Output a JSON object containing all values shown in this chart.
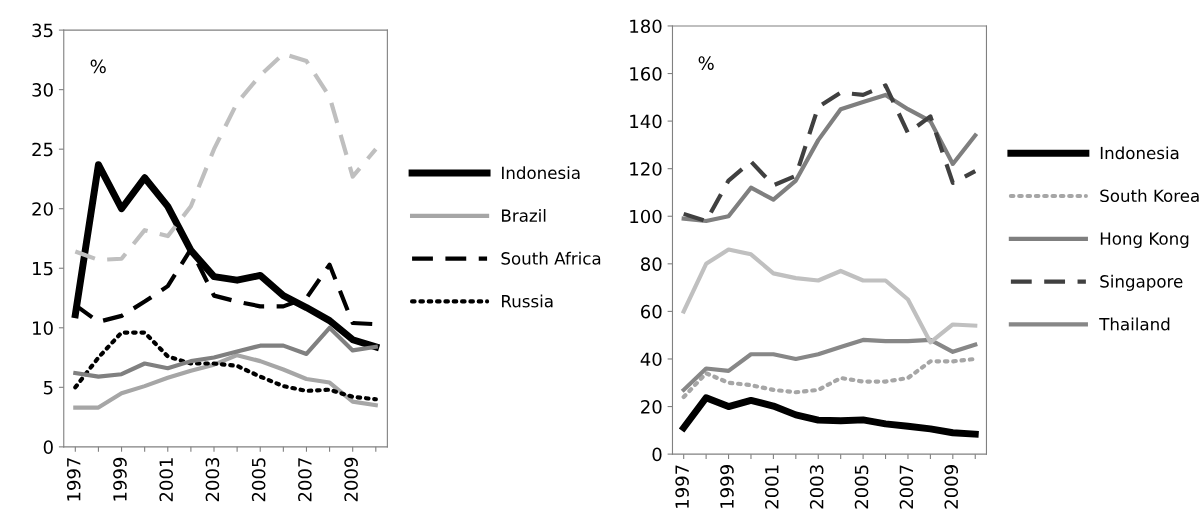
{
  "chart_data": [
    {
      "type": "line",
      "categories": [
        "1997",
        null,
        "1999",
        null,
        "2001",
        null,
        "2003",
        null,
        "2005",
        null,
        "2007",
        null,
        "2009",
        null
      ],
      "ylim": [
        0,
        35
      ],
      "yticks": [
        0,
        5,
        10,
        15,
        20,
        25,
        30,
        35
      ],
      "grid": false,
      "legend": "right",
      "annotations": [
        "%"
      ],
      "series": [
        {
          "name": "Indonesia",
          "color": "#000000",
          "line_style": "solid",
          "values": [
            11.1,
            23.7,
            20,
            22.6,
            20.2,
            16.5,
            14.3,
            14,
            14.4,
            12.7,
            11.7,
            10.6,
            9,
            8.4
          ]
        },
        {
          "name": "Brazil",
          "color": "#a6a6a6",
          "line_style": "solid",
          "values": [
            3.3,
            3.3,
            4.5,
            5.1,
            5.8,
            6.4,
            6.9,
            7.7,
            7.2,
            6.5,
            5.7,
            5.4,
            3.8,
            3.5
          ]
        },
        {
          "name": "South Africa",
          "color": "#000000",
          "line_style": "dashed",
          "values": [
            11.9,
            10.5,
            11,
            12.2,
            13.5,
            16.6,
            12.7,
            12.2,
            11.8,
            11.8,
            12.5,
            15.3,
            10.4,
            10.3
          ]
        },
        {
          "name": "Russia",
          "color": "#000000",
          "line_style": "dotted",
          "values": [
            5,
            7.5,
            9.6,
            9.6,
            7.6,
            7,
            7,
            6.8,
            5.9,
            5.1,
            4.7,
            4.8,
            4.2,
            4
          ]
        },
        {
          "color": "#808080",
          "line_style": "solid",
          "values": [
            6.2,
            5.9,
            6.1,
            7,
            6.6,
            7.2,
            7.5,
            8,
            8.5,
            8.5,
            7.8,
            10,
            8.1,
            8.4
          ]
        },
        {
          "color": "#bfbfbf",
          "line_style": "dashed",
          "values": [
            16.4,
            15.7,
            15.8,
            18.2,
            17.7,
            20.2,
            25,
            28.9,
            31.2,
            33,
            32.4,
            29.4,
            22.7,
            25
          ]
        }
      ]
    },
    {
      "type": "line",
      "categories": [
        "1997",
        null,
        "1999",
        null,
        "2001",
        null,
        "2003",
        null,
        "2005",
        null,
        "2007",
        null,
        "2009",
        null
      ],
      "ylim": [
        0,
        180
      ],
      "yticks": [
        0,
        20,
        40,
        60,
        80,
        100,
        120,
        140,
        160,
        180
      ],
      "grid": false,
      "legend": "right",
      "annotations": [
        "%"
      ],
      "series": [
        {
          "name": "Indonesia",
          "color": "#000000",
          "line_style": "solid",
          "values": [
            11.1,
            23.7,
            20,
            22.6,
            20.2,
            16.5,
            14.3,
            14,
            14.4,
            12.7,
            11.7,
            10.6,
            9,
            8.4
          ]
        },
        {
          "name": "South Korea",
          "color": "#a6a6a6",
          "line_style": "dotted",
          "values": [
            24,
            34,
            30,
            29,
            27,
            26,
            27,
            32,
            30.5,
            30.5,
            32,
            39,
            39,
            40
          ]
        },
        {
          "name": "Hong Kong",
          "color": "#7f7f7f",
          "line_style": "solid",
          "values": [
            99,
            98,
            100,
            112,
            107,
            115,
            132,
            145,
            148,
            151,
            145,
            140,
            122,
            134
          ]
        },
        {
          "name": "Singapore",
          "color": "#404040",
          "line_style": "dashed",
          "values": [
            101,
            98,
            115,
            123,
            113,
            117,
            146,
            152,
            151,
            155,
            135,
            142,
            114,
            119
          ]
        },
        {
          "name": "Thailand",
          "color": "#878787",
          "line_style": "solid",
          "values": [
            27,
            36,
            35,
            42,
            42,
            40,
            42,
            45,
            48,
            47.5,
            47.5,
            48,
            43,
            46
          ]
        },
        {
          "color": "#c0c0c0",
          "line_style": "solid",
          "values": [
            60,
            80,
            86,
            84,
            76,
            74,
            73,
            77,
            73,
            73,
            65,
            47,
            54.5,
            54
          ]
        }
      ]
    }
  ]
}
